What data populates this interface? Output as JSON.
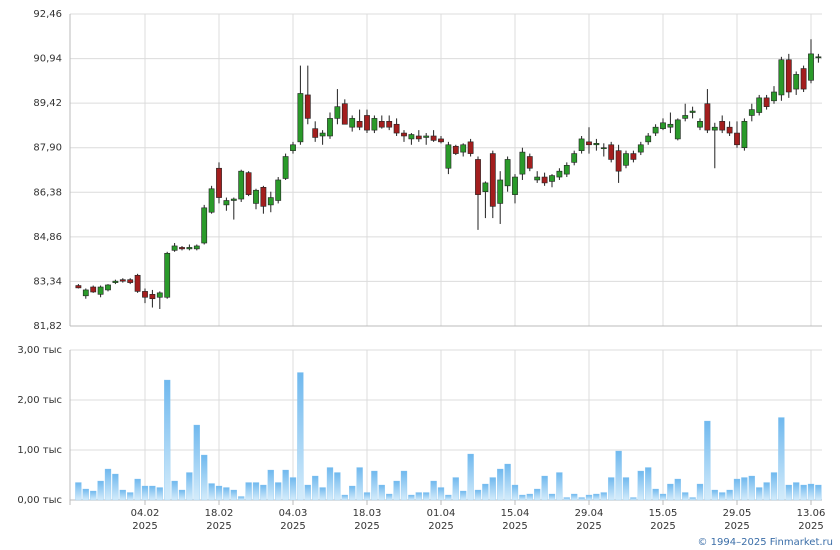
{
  "chart_data": [
    {
      "type": "candlestick",
      "up_color": "#2a9a2a",
      "down_color": "#a31e1e",
      "ylim": [
        81.82,
        92.46
      ],
      "yticks": [
        {
          "value": 81.82,
          "label": "81,82"
        },
        {
          "value": 83.34,
          "label": "83,34"
        },
        {
          "value": 84.86,
          "label": "84,86"
        },
        {
          "value": 86.38,
          "label": "86,38"
        },
        {
          "value": 87.9,
          "label": "87,90"
        },
        {
          "value": 89.42,
          "label": "89,42"
        },
        {
          "value": 90.94,
          "label": "90,94"
        },
        {
          "value": 92.46,
          "label": "92,46"
        }
      ],
      "grid": true,
      "open": [
        83.2,
        82.85,
        83.15,
        82.9,
        83.05,
        83.3,
        83.4,
        83.4,
        83.55,
        83.0,
        82.9,
        82.8,
        82.8,
        84.4,
        84.5,
        84.45,
        84.45,
        84.65,
        85.7,
        87.2,
        85.95,
        86.1,
        86.15,
        87.05,
        86.0,
        86.55,
        85.95,
        86.1,
        86.85,
        87.8,
        88.1,
        89.7,
        88.55,
        88.3,
        88.3,
        88.9,
        89.4,
        88.6,
        88.8,
        89.0,
        88.5,
        88.8,
        88.8,
        88.7,
        88.4,
        88.2,
        88.3,
        88.25,
        88.3,
        88.2,
        87.2,
        87.95,
        87.75,
        88.1,
        87.5,
        86.4,
        87.7,
        86.0,
        86.6,
        86.3,
        87.0,
        87.6,
        86.8,
        86.9,
        86.75,
        86.9,
        87.0,
        87.4,
        87.8,
        88.1,
        88.0,
        87.9,
        88.0,
        87.8,
        87.3,
        87.7,
        87.75,
        88.1,
        88.4,
        88.55,
        88.6,
        88.2,
        88.9,
        89.1,
        88.6,
        89.4,
        88.5,
        88.8,
        88.6,
        88.4,
        87.9,
        89.0,
        89.1,
        89.6,
        89.5,
        89.7,
        90.9,
        89.9,
        90.6,
        90.2,
        91.0
      ],
      "high": [
        83.25,
        83.1,
        83.2,
        83.2,
        83.25,
        83.4,
        83.45,
        83.45,
        83.6,
        83.1,
        83.05,
        83.0,
        84.35,
        84.65,
        84.55,
        84.6,
        84.6,
        85.95,
        86.6,
        87.4,
        86.2,
        86.2,
        87.15,
        87.1,
        86.5,
        86.6,
        86.4,
        86.9,
        87.7,
        88.1,
        90.7,
        90.7,
        88.8,
        88.5,
        89.1,
        89.9,
        89.55,
        89.0,
        89.2,
        89.2,
        89.0,
        89.0,
        89.0,
        88.9,
        88.5,
        88.4,
        88.5,
        88.4,
        88.5,
        88.3,
        88.1,
        88.0,
        88.05,
        88.2,
        87.6,
        86.75,
        87.8,
        87.1,
        87.6,
        87.0,
        87.9,
        87.7,
        87.1,
        87.05,
        87.0,
        87.2,
        87.4,
        87.8,
        88.3,
        88.6,
        88.2,
        88.05,
        88.1,
        88.0,
        87.8,
        87.8,
        88.1,
        88.4,
        88.7,
        88.9,
        89.1,
        88.9,
        89.4,
        89.3,
        88.9,
        89.9,
        88.75,
        89.0,
        88.8,
        88.8,
        88.9,
        89.4,
        89.7,
        89.7,
        90.0,
        91.0,
        91.1,
        90.5,
        90.7,
        91.6,
        91.1
      ],
      "low": [
        83.1,
        82.75,
        82.95,
        82.8,
        83.0,
        83.25,
        83.3,
        83.25,
        82.95,
        82.6,
        82.45,
        82.4,
        82.75,
        84.35,
        84.4,
        84.4,
        84.4,
        84.6,
        85.65,
        86.0,
        85.75,
        85.45,
        86.05,
        86.25,
        85.8,
        85.65,
        85.7,
        86.0,
        86.8,
        87.7,
        88.0,
        88.7,
        88.1,
        88.0,
        88.2,
        88.7,
        88.7,
        88.45,
        88.5,
        88.4,
        88.4,
        88.55,
        88.5,
        88.3,
        88.1,
        88.0,
        88.1,
        88.0,
        88.1,
        88.05,
        87.0,
        87.65,
        87.6,
        87.6,
        85.1,
        85.5,
        85.5,
        85.3,
        86.4,
        86.0,
        86.8,
        87.1,
        86.7,
        86.6,
        86.55,
        86.8,
        86.9,
        87.3,
        87.7,
        87.7,
        87.8,
        87.6,
        87.4,
        86.7,
        87.2,
        87.4,
        87.65,
        88.0,
        88.3,
        88.5,
        88.4,
        88.15,
        88.8,
        88.9,
        88.5,
        88.4,
        87.2,
        88.4,
        88.3,
        87.9,
        87.8,
        88.8,
        89.0,
        89.2,
        89.4,
        89.5,
        89.6,
        89.7,
        89.8,
        90.1,
        90.8
      ],
      "close": [
        83.12,
        83.05,
        82.98,
        83.15,
        83.22,
        83.35,
        83.35,
        83.3,
        83.0,
        82.8,
        82.75,
        82.95,
        84.3,
        84.55,
        84.45,
        84.5,
        84.55,
        85.85,
        86.5,
        86.2,
        86.1,
        86.15,
        87.1,
        86.3,
        86.45,
        85.9,
        86.2,
        86.8,
        87.6,
        88.0,
        89.75,
        88.9,
        88.25,
        88.4,
        88.9,
        89.3,
        88.7,
        88.9,
        88.6,
        88.5,
        88.9,
        88.6,
        88.6,
        88.4,
        88.3,
        88.35,
        88.2,
        88.3,
        88.15,
        88.1,
        88.0,
        87.7,
        88.0,
        87.7,
        86.3,
        86.7,
        85.9,
        86.8,
        87.5,
        86.9,
        87.75,
        87.2,
        86.9,
        86.7,
        86.95,
        87.1,
        87.3,
        87.7,
        88.2,
        88.0,
        88.05,
        87.9,
        87.5,
        87.1,
        87.7,
        87.5,
        88.0,
        88.3,
        88.6,
        88.75,
        88.7,
        88.85,
        89.0,
        89.15,
        88.8,
        88.5,
        88.6,
        88.5,
        88.4,
        88.0,
        88.8,
        89.2,
        89.6,
        89.3,
        89.8,
        90.9,
        89.8,
        90.4,
        89.9,
        91.1,
        91.0
      ]
    },
    {
      "type": "bar",
      "color": "#8ec8f2",
      "ylim": [
        0,
        3
      ],
      "yticks": [
        {
          "value": 0,
          "label": "0,00 тыс"
        },
        {
          "value": 1,
          "label": "1,00 тыс"
        },
        {
          "value": 2,
          "label": "2,00 тыс"
        },
        {
          "value": 3,
          "label": "3,00 тыс"
        }
      ],
      "grid": true,
      "categories": [
        null,
        null,
        null,
        null,
        null,
        null,
        null,
        null,
        null,
        "04.02",
        null,
        null,
        null,
        null,
        null,
        null,
        null,
        null,
        null,
        "18.02",
        null,
        null,
        null,
        null,
        null,
        null,
        null,
        null,
        null,
        "04.03",
        null,
        null,
        null,
        null,
        null,
        null,
        null,
        null,
        null,
        "18.03",
        null,
        null,
        null,
        null,
        null,
        null,
        null,
        null,
        null,
        "01.04",
        null,
        null,
        null,
        null,
        null,
        null,
        null,
        null,
        null,
        "15.04",
        null,
        null,
        null,
        null,
        null,
        null,
        null,
        null,
        null,
        "29.04",
        null,
        null,
        null,
        null,
        null,
        null,
        null,
        null,
        null,
        "15.05",
        null,
        null,
        null,
        null,
        null,
        null,
        null,
        null,
        null,
        "29.05",
        null,
        null,
        null,
        null,
        null,
        null,
        null,
        null,
        null,
        "13.06",
        null
      ],
      "category_years": [
        null,
        null,
        null,
        null,
        null,
        null,
        null,
        null,
        null,
        "2025",
        null,
        null,
        null,
        null,
        null,
        null,
        null,
        null,
        null,
        "2025",
        null,
        null,
        null,
        null,
        null,
        null,
        null,
        null,
        null,
        "2025",
        null,
        null,
        null,
        null,
        null,
        null,
        null,
        null,
        null,
        "2025",
        null,
        null,
        null,
        null,
        null,
        null,
        null,
        null,
        null,
        "2025",
        null,
        null,
        null,
        null,
        null,
        null,
        null,
        null,
        null,
        "2025",
        null,
        null,
        null,
        null,
        null,
        null,
        null,
        null,
        null,
        "2025",
        null,
        null,
        null,
        null,
        null,
        null,
        null,
        null,
        null,
        "2025",
        null,
        null,
        null,
        null,
        null,
        null,
        null,
        null,
        null,
        "2025",
        null,
        null,
        null,
        null,
        null,
        null,
        null,
        null,
        null,
        "2025",
        null
      ],
      "values": [
        0.35,
        0.22,
        0.18,
        0.38,
        0.62,
        0.52,
        0.2,
        0.15,
        0.42,
        0.28,
        0.28,
        0.25,
        2.4,
        0.38,
        0.2,
        0.55,
        1.5,
        0.9,
        0.33,
        0.28,
        0.25,
        0.2,
        0.07,
        0.35,
        0.35,
        0.3,
        0.6,
        0.35,
        0.6,
        0.45,
        2.55,
        0.3,
        0.48,
        0.25,
        0.65,
        0.55,
        0.1,
        0.28,
        0.65,
        0.15,
        0.58,
        0.3,
        0.12,
        0.38,
        0.58,
        0.1,
        0.15,
        0.15,
        0.38,
        0.25,
        0.1,
        0.45,
        0.18,
        0.92,
        0.2,
        0.32,
        0.45,
        0.62,
        0.72,
        0.3,
        0.1,
        0.12,
        0.22,
        0.48,
        0.12,
        0.55,
        0.05,
        0.12,
        0.05,
        0.1,
        0.12,
        0.15,
        0.45,
        0.98,
        0.45,
        0.05,
        0.58,
        0.65,
        0.22,
        0.12,
        0.32,
        0.42,
        0.15,
        0.05,
        0.32,
        1.58,
        0.2,
        0.15,
        0.2,
        0.42,
        0.45,
        0.48,
        0.25,
        0.35,
        0.55,
        1.65,
        0.3,
        0.35,
        0.3,
        0.32,
        0.3
      ]
    }
  ],
  "footer": "© 1994–2025 Finmarket.ru"
}
